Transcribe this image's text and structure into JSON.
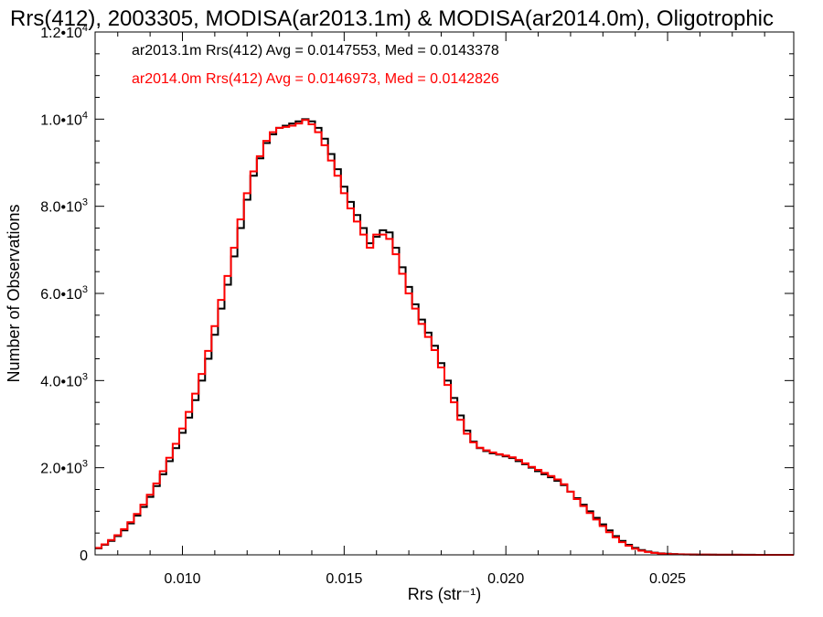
{
  "chart_data": {
    "type": "line",
    "title": "Rrs(412), 2003305, MODISA(ar2013.1m) & MODISA(ar2014.0m), Oligotrophic",
    "xlabel": "Rrs (str⁻¹)",
    "ylabel": "Number of Observations",
    "xlim": [
      0.0073,
      0.0289
    ],
    "ylim": [
      0,
      12000
    ],
    "x_ticks": [
      {
        "value": 0.01,
        "label": "0.010"
      },
      {
        "value": 0.015,
        "label": "0.015"
      },
      {
        "value": 0.02,
        "label": "0.020"
      },
      {
        "value": 0.025,
        "label": "0.025"
      }
    ],
    "y_ticks": [
      {
        "value": 0,
        "mant": "0",
        "exp": ""
      },
      {
        "value": 2000,
        "mant": "2.0•10",
        "exp": "3"
      },
      {
        "value": 4000,
        "mant": "4.0•10",
        "exp": "3"
      },
      {
        "value": 6000,
        "mant": "6.0•10",
        "exp": "3"
      },
      {
        "value": 8000,
        "mant": "8.0•10",
        "exp": "3"
      },
      {
        "value": 10000,
        "mant": "1.0•10",
        "exp": "4"
      },
      {
        "value": 12000,
        "mant": "1.2•10",
        "exp": "4"
      }
    ],
    "grid": false,
    "legend_position": "top-left",
    "annotations": [
      "ar2013.1m Rrs(412) Avg = 0.0147553, Med = 0.0143378",
      "ar2014.0m Rrs(412) Avg = 0.0146973, Med = 0.0142826"
    ],
    "series": [
      {
        "color": "#000000",
        "x": [
          0.0073,
          0.0075,
          0.0077,
          0.0079,
          0.0081,
          0.0083,
          0.0085,
          0.0087,
          0.0089,
          0.0091,
          0.0093,
          0.0095,
          0.0097,
          0.0099,
          0.0101,
          0.0103,
          0.0105,
          0.0107,
          0.0109,
          0.0111,
          0.0113,
          0.0115,
          0.0117,
          0.0119,
          0.0121,
          0.0123,
          0.0125,
          0.0127,
          0.0129,
          0.0131,
          0.0133,
          0.0135,
          0.0137,
          0.0139,
          0.0141,
          0.0143,
          0.0145,
          0.0147,
          0.0149,
          0.0151,
          0.0153,
          0.0155,
          0.0157,
          0.0159,
          0.0161,
          0.0163,
          0.0165,
          0.0167,
          0.0169,
          0.0171,
          0.0173,
          0.0175,
          0.0177,
          0.0179,
          0.0181,
          0.0183,
          0.0185,
          0.0187,
          0.0189,
          0.0191,
          0.0193,
          0.0195,
          0.0197,
          0.0199,
          0.0201,
          0.0203,
          0.0205,
          0.0207,
          0.0209,
          0.0211,
          0.0213,
          0.0215,
          0.0217,
          0.0219,
          0.0221,
          0.0223,
          0.0225,
          0.0227,
          0.0229,
          0.0231,
          0.0233,
          0.0235,
          0.0237,
          0.0239,
          0.0241,
          0.0243,
          0.0245,
          0.0247,
          0.0249,
          0.0251,
          0.0253,
          0.0255,
          0.0257,
          0.0259,
          0.0261,
          0.0263,
          0.0265,
          0.0267,
          0.0269,
          0.0271,
          0.0273,
          0.0275,
          0.0277,
          0.0279,
          0.0281,
          0.0283,
          0.0285,
          0.0287
        ],
        "y": [
          150,
          230,
          320,
          430,
          560,
          720,
          900,
          1100,
          1330,
          1580,
          1850,
          2150,
          2450,
          2800,
          3150,
          3550,
          4000,
          4500,
          5050,
          5650,
          6200,
          6850,
          7500,
          8150,
          8700,
          9100,
          9450,
          9650,
          9800,
          9850,
          9900,
          9950,
          10000,
          9950,
          9800,
          9550,
          9200,
          8850,
          8450,
          8100,
          7800,
          7500,
          7150,
          7300,
          7450,
          7400,
          7050,
          6600,
          6150,
          5750,
          5400,
          5100,
          4800,
          4400,
          4000,
          3600,
          3200,
          2850,
          2600,
          2450,
          2380,
          2330,
          2300,
          2260,
          2220,
          2150,
          2080,
          2000,
          1920,
          1850,
          1780,
          1700,
          1600,
          1450,
          1300,
          1150,
          1000,
          850,
          700,
          560,
          430,
          320,
          230,
          160,
          110,
          75,
          50,
          35,
          25,
          18,
          12,
          10,
          8,
          6,
          5,
          4,
          3,
          3,
          2,
          2,
          2,
          2,
          1,
          1,
          1,
          1,
          1,
          1
        ]
      },
      {
        "color": "#ff0000",
        "x": [
          0.0073,
          0.0075,
          0.0077,
          0.0079,
          0.0081,
          0.0083,
          0.0085,
          0.0087,
          0.0089,
          0.0091,
          0.0093,
          0.0095,
          0.0097,
          0.0099,
          0.0101,
          0.0103,
          0.0105,
          0.0107,
          0.0109,
          0.0111,
          0.0113,
          0.0115,
          0.0117,
          0.0119,
          0.0121,
          0.0123,
          0.0125,
          0.0127,
          0.0129,
          0.0131,
          0.0133,
          0.0135,
          0.0137,
          0.0139,
          0.0141,
          0.0143,
          0.0145,
          0.0147,
          0.0149,
          0.0151,
          0.0153,
          0.0155,
          0.0157,
          0.0159,
          0.0161,
          0.0163,
          0.0165,
          0.0167,
          0.0169,
          0.0171,
          0.0173,
          0.0175,
          0.0177,
          0.0179,
          0.0181,
          0.0183,
          0.0185,
          0.0187,
          0.0189,
          0.0191,
          0.0193,
          0.0195,
          0.0197,
          0.0199,
          0.0201,
          0.0203,
          0.0205,
          0.0207,
          0.0209,
          0.0211,
          0.0213,
          0.0215,
          0.0217,
          0.0219,
          0.0221,
          0.0223,
          0.0225,
          0.0227,
          0.0229,
          0.0231,
          0.0233,
          0.0235,
          0.0237,
          0.0239,
          0.0241,
          0.0243,
          0.0245,
          0.0247,
          0.0249,
          0.0251,
          0.0253,
          0.0255,
          0.0257,
          0.0259,
          0.0261,
          0.0263,
          0.0265,
          0.0267,
          0.0269,
          0.0271,
          0.0273,
          0.0275,
          0.0277,
          0.0279,
          0.0281,
          0.0283,
          0.0285,
          0.0287
        ],
        "y": [
          160,
          240,
          340,
          450,
          590,
          750,
          940,
          1150,
          1380,
          1640,
          1920,
          2230,
          2550,
          2900,
          3280,
          3700,
          4150,
          4680,
          5250,
          5850,
          6400,
          7050,
          7700,
          8300,
          8800,
          9150,
          9500,
          9700,
          9800,
          9820,
          9850,
          9900,
          9980,
          9880,
          9700,
          9400,
          9050,
          8700,
          8300,
          7950,
          7650,
          7350,
          7050,
          7350,
          7350,
          7250,
          6900,
          6450,
          6000,
          5650,
          5300,
          5000,
          4700,
          4300,
          3900,
          3500,
          3100,
          2780,
          2580,
          2460,
          2400,
          2350,
          2310,
          2280,
          2240,
          2180,
          2100,
          2020,
          1950,
          1880,
          1810,
          1730,
          1620,
          1450,
          1280,
          1120,
          960,
          810,
          660,
          520,
          400,
          290,
          210,
          140,
          95,
          65,
          45,
          30,
          20,
          14,
          10,
          8,
          6,
          5,
          4,
          3,
          3,
          2,
          2,
          2,
          1,
          1,
          1,
          1,
          1,
          1,
          1,
          1
        ]
      }
    ]
  }
}
